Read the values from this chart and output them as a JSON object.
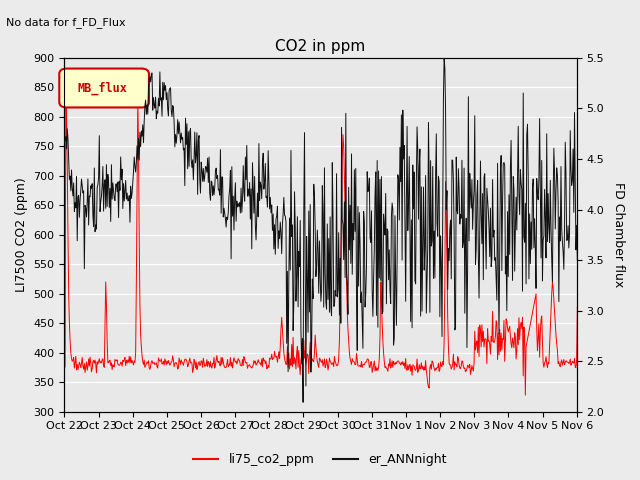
{
  "title": "CO2 in ppm",
  "title_note": "No data for f_FD_Flux",
  "ylabel_left": "LI7500 CO2 (ppm)",
  "ylabel_right": "FD Chamber flux",
  "ylim_left": [
    300,
    900
  ],
  "ylim_right": [
    2.0,
    5.5
  ],
  "yticks_left": [
    300,
    350,
    400,
    450,
    500,
    550,
    600,
    650,
    700,
    750,
    800,
    850,
    900
  ],
  "yticks_right": [
    2.0,
    2.5,
    3.0,
    3.5,
    4.0,
    4.5,
    5.0,
    5.5
  ],
  "xtick_labels": [
    "Oct 22",
    "Oct 23",
    "Oct 24",
    "Oct 25",
    "Oct 26",
    "Oct 27",
    "Oct 28",
    "Oct 29",
    "Oct 30",
    "Oct 31",
    "Nov 1",
    "Nov 2",
    "Nov 3",
    "Nov 4",
    "Nov 5",
    "Nov 6"
  ],
  "line1_color": "#ff0000",
  "line1_label": "li75_co2_ppm",
  "line2_color": "#111111",
  "line2_label": "er_ANNnight",
  "legend_label": "MB_flux",
  "legend_bg": "#ffffcc",
  "legend_border": "#cc0000",
  "plot_bg": "#e8e8e8",
  "grid_color": "#ffffff",
  "linewidth": 0.7
}
